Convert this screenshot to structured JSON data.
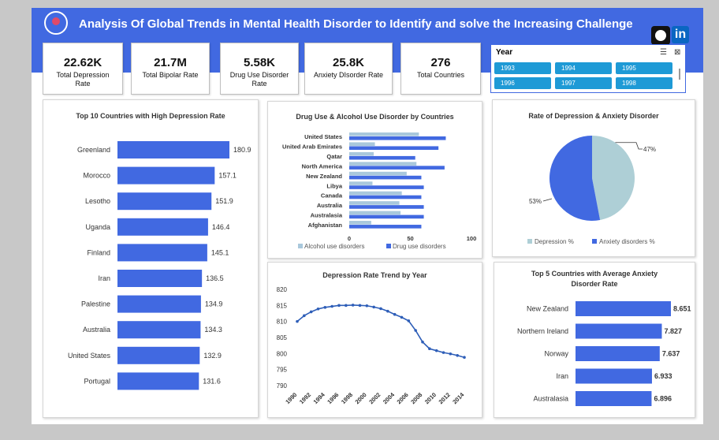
{
  "header": {
    "title": "Analysis Of Global  Trends in Mental Health Disorder to Identify and solve the Increasing Challenge",
    "icons": [
      "brain-heart-icon",
      "github-icon",
      "linkedin-icon"
    ],
    "linkedin_glyph": "in",
    "accent": "#4169e1"
  },
  "kpis": [
    {
      "value": "22.62K",
      "label": "Total Depression Rate"
    },
    {
      "value": "21.7M",
      "label": "Total Bipolar Rate"
    },
    {
      "value": "5.58K",
      "label": "Drug Use Disorder Rate"
    },
    {
      "value": "25.8K",
      "label": "Anxiety DIsorder Rate"
    },
    {
      "value": "276",
      "label": "Total Countries"
    }
  ],
  "slicer": {
    "title": "Year",
    "multi_select_glyph": "☰",
    "clear_filter_glyph": "⊠",
    "items": [
      "1993",
      "1994",
      "1995",
      "1996",
      "1997",
      "1998"
    ],
    "color": "#1e9ad6"
  },
  "charts": {
    "top10": {
      "title": "Top 10 Countries with High Depression Rate",
      "color": "#4169e1",
      "chart_data": {
        "type": "bar",
        "categories": [
          "Greenland",
          "Morocco",
          "Lesotho",
          "Uganda",
          "Finland",
          "Iran",
          "Palestine",
          "Australia",
          "United States",
          "Portugal"
        ],
        "values": [
          180.9,
          157.1,
          151.9,
          146.4,
          145.1,
          136.5,
          134.9,
          134.3,
          132.9,
          131.6
        ],
        "value_labels": [
          "180.9",
          "157.1",
          "151.9",
          "146.4",
          "145.1",
          "136.5",
          "134.9",
          "134.3",
          "132.9",
          "131.6"
        ]
      }
    },
    "drug": {
      "title": "Drug Use & Alcohol Use Disorder by Countries",
      "chart_data": {
        "type": "bar",
        "categories": [
          "United States",
          "United Arab Emirates",
          "Qatar",
          "North America",
          "New Zealand",
          "Libya",
          "Canada",
          "Australia",
          "Australasia",
          "Afghanistan"
        ],
        "series": [
          {
            "name": "Alcohol use disorders",
            "color": "#a9c8dc",
            "values": [
              57,
              21,
              20,
              55,
              47,
              19,
              43,
              41,
              42,
              18
            ]
          },
          {
            "name": "Drug use disorders",
            "color": "#4169e1",
            "values": [
              79,
              73,
              54,
              78,
              59,
              61,
              59,
              61,
              61,
              59
            ]
          }
        ],
        "xlim": [
          0,
          100
        ],
        "xticks": [
          "0",
          "50",
          "100"
        ],
        "legend": "bottom"
      }
    },
    "pie": {
      "title": "Rate of Depression & Anxiety Disorder",
      "chart_data": {
        "type": "pie",
        "slices": [
          {
            "name": "Depression %",
            "value": 47,
            "label": "47%",
            "color": "#aecfd6"
          },
          {
            "name": "Anxiety disorders %",
            "value": 53,
            "label": "53%",
            "color": "#4169e1"
          }
        ],
        "legend": "bottom"
      }
    },
    "trend": {
      "title": "Depression Rate Trend by Year",
      "color": "#2e5eb8",
      "chart_data": {
        "type": "line",
        "x": [
          1990,
          1991,
          1992,
          1993,
          1994,
          1995,
          1996,
          1997,
          1998,
          1999,
          2000,
          2001,
          2002,
          2003,
          2004,
          2005,
          2006,
          2007,
          2008,
          2009,
          2010,
          2011,
          2012,
          2013,
          2014
        ],
        "y": [
          810.0,
          811.8,
          813.0,
          813.9,
          814.4,
          814.7,
          815.0,
          815.0,
          815.1,
          815.0,
          814.9,
          814.5,
          814.0,
          813.2,
          812.2,
          811.3,
          810.2,
          807.2,
          803.6,
          801.5,
          800.9,
          800.3,
          799.9,
          799.4,
          798.8
        ],
        "ylim": [
          790,
          820
        ],
        "yticks": [
          "790",
          "795",
          "800",
          "805",
          "810",
          "815",
          "820"
        ],
        "xticks": [
          "1990",
          "1992",
          "1994",
          "1996",
          "1998",
          "2000",
          "2002",
          "2004",
          "2006",
          "2008",
          "2010",
          "2012",
          "2014"
        ]
      }
    },
    "top5": {
      "title": "Top 5 Countries with Average Anxiety Disorder Rate",
      "color": "#4169e1",
      "chart_data": {
        "type": "bar",
        "categories": [
          "New Zealand",
          "Northern Ireland",
          "Norway",
          "Iran",
          "Australasia"
        ],
        "values": [
          8.651,
          7.827,
          7.637,
          6.933,
          6.896
        ],
        "value_labels": [
          "8.651",
          "7.827",
          "7.637",
          "6.933",
          "6.896"
        ]
      }
    }
  }
}
